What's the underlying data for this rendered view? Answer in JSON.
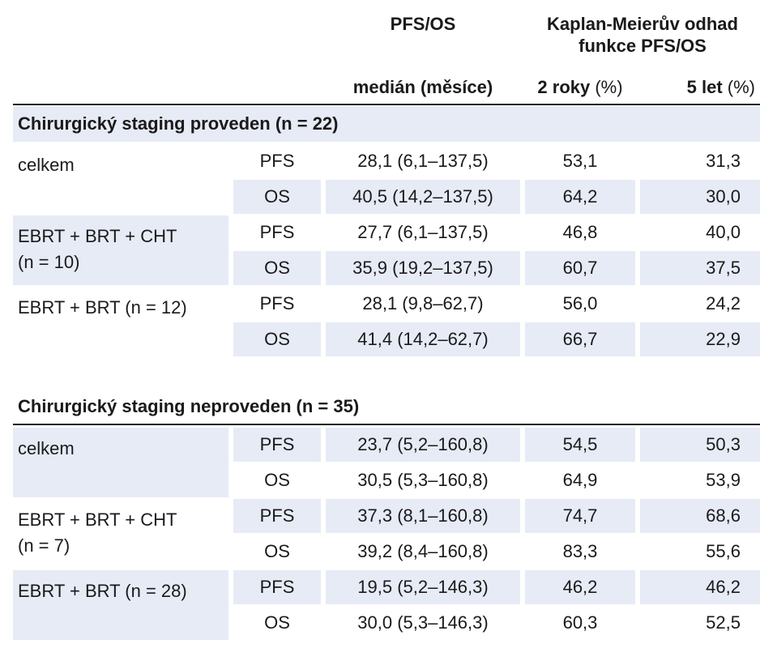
{
  "header": {
    "col_pfs_os": "PFS/OS",
    "col_km_title": "Kaplan-Meierův odhad funkce PFS/OS",
    "col_median_label": "medián",
    "col_median_unit": "(měsíce)",
    "col_2y_label": "2 roky",
    "col_2y_unit": "(%)",
    "col_5y_label": "5 let",
    "col_5y_unit": "(%)"
  },
  "sections": [
    {
      "title": "Chirurgický staging proveden",
      "count": "(n = 22)",
      "groups": [
        {
          "label_line1": "celkem",
          "label_line2": "",
          "rows": [
            {
              "type": "PFS",
              "median": "28,1 (6,1–137,5)",
              "y2": "53,1",
              "y5": "31,3"
            },
            {
              "type": "OS",
              "median": "40,5 (14,2–137,5)",
              "y2": "64,2",
              "y5": "30,0"
            }
          ]
        },
        {
          "label_line1": "EBRT + BRT + CHT",
          "label_line2": "(n = 10)",
          "rows": [
            {
              "type": "PFS",
              "median": "27,7 (6,1–137,5)",
              "y2": "46,8",
              "y5": "40,0"
            },
            {
              "type": "OS",
              "median": "35,9 (19,2–137,5)",
              "y2": "60,7",
              "y5": "37,5"
            }
          ]
        },
        {
          "label_line1": "EBRT + BRT (n = 12)",
          "label_line2": "",
          "rows": [
            {
              "type": "PFS",
              "median": "28,1 (9,8–62,7)",
              "y2": "56,0",
              "y5": "24,2"
            },
            {
              "type": "OS",
              "median": "41,4 (14,2–62,7)",
              "y2": "66,7",
              "y5": "22,9"
            }
          ]
        }
      ]
    },
    {
      "title": "Chirurgický staging neproveden",
      "count": "(n = 35)",
      "groups": [
        {
          "label_line1": "celkem",
          "label_line2": "",
          "rows": [
            {
              "type": "PFS",
              "median": "23,7 (5,2–160,8)",
              "y2": "54,5",
              "y5": "50,3"
            },
            {
              "type": "OS",
              "median": "30,5 (5,3–160,8)",
              "y2": "64,9",
              "y5": "53,9"
            }
          ]
        },
        {
          "label_line1": "EBRT + BRT + CHT",
          "label_line2": "(n = 7)",
          "rows": [
            {
              "type": "PFS",
              "median": "37,3 (8,1–160,8)",
              "y2": "74,7",
              "y5": "68,6"
            },
            {
              "type": "OS",
              "median": "39,2 (8,4–160,8)",
              "y2": "83,3",
              "y5": "55,6"
            }
          ]
        },
        {
          "label_line1": "EBRT + BRT (n = 28)",
          "label_line2": "",
          "rows": [
            {
              "type": "PFS",
              "median": "19,5 (5,2–146,3)",
              "y2": "46,2",
              "y5": "46,2"
            },
            {
              "type": "OS",
              "median": "30,0 (5,3–146,3)",
              "y2": "60,3",
              "y5": "52,5"
            }
          ]
        }
      ]
    }
  ],
  "colors": {
    "row_shade": "#e6ebf6",
    "text": "#1a1a1a"
  }
}
